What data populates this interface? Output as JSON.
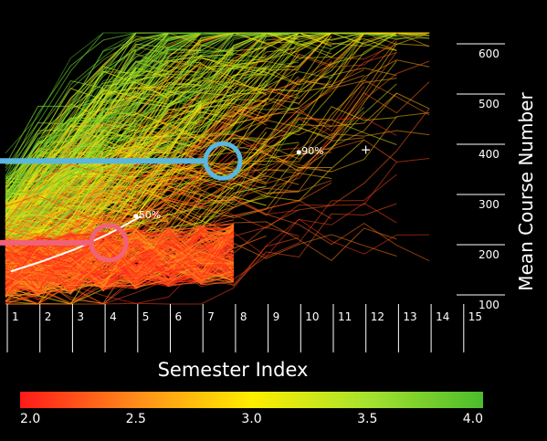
{
  "chart_data": {
    "type": "line",
    "title": "",
    "xlabel": "Semester Index",
    "ylabel": "Mean Course Number",
    "x_ticks": [
      "1",
      "2",
      "3",
      "4",
      "5",
      "6",
      "7",
      "8",
      "9",
      "10",
      "11",
      "12",
      "13",
      "14",
      "15"
    ],
    "y_ticks": [
      "100",
      "200",
      "300",
      "400",
      "500",
      "600"
    ],
    "xlim": [
      1,
      15
    ],
    "ylim": [
      100,
      620
    ],
    "grid": false,
    "color_scale": {
      "label_values": [
        "2.0",
        "2.5",
        "3.0",
        "3.5",
        "4.0"
      ],
      "min": 2.0,
      "max": 4.0,
      "colors": [
        "#ff1a1a",
        "#ff8c1a",
        "#ffee00",
        "#a6e22e",
        "#4cbb2c"
      ]
    },
    "percentile_markers": [
      {
        "label": "50%",
        "x": 5.0,
        "y": 275
      },
      {
        "label": "90%",
        "x": 10.0,
        "y": 402
      }
    ],
    "extra_marker": {
      "label": "+",
      "x": 12.0,
      "y": 405
    },
    "median_line": [
      [
        1,
        165
      ],
      [
        2,
        186
      ],
      [
        3,
        210
      ],
      [
        4,
        240
      ],
      [
        5,
        275
      ]
    ],
    "highlight_circles": [
      {
        "color": "#5ab7e0",
        "x": 7.5,
        "y": 385
      },
      {
        "color": "#f06277",
        "x": 4.0,
        "y": 222
      }
    ],
    "series_summary": "Hundreds of student trajectories; density mostly in semesters 1–8 between 100 and 450, sparse lines extending to semester 15 and above 600."
  }
}
